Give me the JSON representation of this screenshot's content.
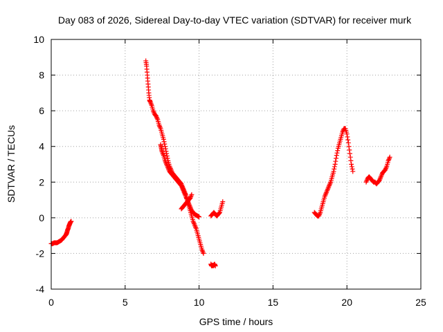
{
  "chart_data": {
    "type": "scatter",
    "title": "Day 083 of 2026, Sidereal Day-to-day VTEC variation (SDTVAR) for receiver murk",
    "xlabel": "GPS time / hours",
    "ylabel": "SDTVAR / TECUs",
    "xlim": [
      0,
      25
    ],
    "ylim": [
      -4,
      10
    ],
    "xticks": [
      0,
      5,
      10,
      15,
      20,
      25
    ],
    "yticks": [
      -4,
      -2,
      0,
      2,
      4,
      6,
      8,
      10
    ],
    "grid": true,
    "marker": "+",
    "colors": {
      "series": "#ff0000",
      "grid": "#a0a0a0",
      "axis": "#000000"
    },
    "series": [
      {
        "name": "segment-1",
        "x": [
          0.0,
          0.1,
          0.2,
          0.3,
          0.4,
          0.5,
          0.6,
          0.7,
          0.8,
          0.9,
          1.0,
          1.05,
          1.1,
          1.15,
          1.2,
          1.25,
          1.3,
          1.35
        ],
        "y": [
          -1.45,
          -1.45,
          -1.4,
          -1.4,
          -1.4,
          -1.35,
          -1.3,
          -1.25,
          -1.15,
          -1.05,
          -0.95,
          -0.85,
          -0.7,
          -0.6,
          -0.45,
          -0.35,
          -0.25,
          -0.2
        ]
      },
      {
        "name": "segment-2",
        "x": [
          6.4,
          6.45,
          6.5,
          6.55,
          6.6,
          6.65,
          6.7,
          6.8,
          6.9,
          7.0,
          7.1,
          7.2,
          7.3,
          7.4,
          7.5,
          7.6,
          7.7,
          7.8,
          7.9,
          8.0,
          8.1,
          8.2,
          8.3,
          8.4,
          8.5,
          8.6,
          8.7,
          8.8,
          8.9,
          9.0,
          9.1,
          9.2,
          9.3,
          9.4,
          9.5,
          9.6,
          9.7,
          9.8,
          9.9,
          10.0,
          10.1,
          10.2,
          10.3
        ],
        "y": [
          8.8,
          8.5,
          8.0,
          7.5,
          7.0,
          6.6,
          6.5,
          6.3,
          6.0,
          5.8,
          5.7,
          5.5,
          5.2,
          5.0,
          4.7,
          4.4,
          4.0,
          3.6,
          3.2,
          2.9,
          2.7,
          2.5,
          2.4,
          2.3,
          2.2,
          2.1,
          2.0,
          1.9,
          1.7,
          1.5,
          1.3,
          1.0,
          0.7,
          0.4,
          0.1,
          -0.2,
          -0.4,
          -0.6,
          -0.9,
          -1.2,
          -1.5,
          -1.8,
          -2.0
        ]
      },
      {
        "name": "segment-3",
        "x": [
          7.4,
          7.45,
          7.5,
          7.6,
          7.7,
          7.8,
          7.9,
          8.0,
          8.1,
          8.2,
          8.3,
          8.4,
          8.5,
          8.6,
          8.7,
          8.8,
          8.9,
          9.0,
          9.1,
          9.2,
          9.3,
          9.4,
          9.5,
          9.6,
          9.7,
          9.8,
          9.9,
          10.0
        ],
        "y": [
          4.1,
          3.9,
          3.7,
          3.5,
          3.2,
          3.0,
          2.8,
          2.6,
          2.5,
          2.4,
          2.3,
          2.2,
          2.1,
          2.0,
          1.9,
          1.8,
          1.6,
          1.4,
          1.2,
          1.0,
          0.8,
          0.6,
          0.4,
          0.3,
          0.2,
          0.15,
          0.1,
          0.05
        ]
      },
      {
        "name": "segment-4",
        "x": [
          8.8,
          8.9,
          9.0,
          9.1,
          9.2,
          9.3,
          9.4,
          9.5
        ],
        "y": [
          0.5,
          0.6,
          0.7,
          0.8,
          0.9,
          1.0,
          1.1,
          1.3
        ]
      },
      {
        "name": "segment-5",
        "x": [
          10.8,
          10.85,
          10.9,
          10.95,
          11.0,
          11.05,
          11.1
        ],
        "y": [
          -2.6,
          -2.7,
          -2.65,
          -2.7,
          -2.65,
          -2.6,
          -2.7
        ]
      },
      {
        "name": "segment-6",
        "x": [
          10.8,
          10.9,
          11.0,
          11.1,
          11.2,
          11.3,
          11.4,
          11.5,
          11.6
        ],
        "y": [
          0.1,
          0.2,
          0.3,
          0.2,
          0.1,
          0.2,
          0.3,
          0.6,
          0.9
        ]
      },
      {
        "name": "segment-7",
        "x": [
          17.8,
          17.9,
          18.0,
          18.1,
          18.2,
          18.3,
          18.4,
          18.5,
          18.6,
          18.7,
          18.8,
          18.9,
          19.0,
          19.1,
          19.2,
          19.3,
          19.4,
          19.5,
          19.6,
          19.7,
          19.8,
          19.9,
          20.0,
          20.1,
          20.2,
          20.3,
          20.4
        ],
        "y": [
          0.3,
          0.2,
          0.1,
          0.1,
          0.3,
          0.6,
          0.9,
          1.2,
          1.4,
          1.6,
          1.8,
          2.0,
          2.3,
          2.6,
          3.0,
          3.5,
          3.9,
          4.2,
          4.5,
          4.8,
          5.0,
          5.0,
          4.7,
          4.2,
          3.6,
          3.0,
          2.6
        ]
      },
      {
        "name": "segment-8",
        "x": [
          21.3,
          21.4,
          21.5,
          21.6,
          21.7,
          21.8,
          21.9,
          22.0,
          22.1,
          22.2,
          22.3,
          22.4,
          22.5,
          22.6,
          22.7,
          22.8,
          22.9
        ],
        "y": [
          2.0,
          2.2,
          2.3,
          2.2,
          2.1,
          2.0,
          2.0,
          1.9,
          2.0,
          2.1,
          2.3,
          2.5,
          2.6,
          2.7,
          2.9,
          3.2,
          3.4
        ]
      }
    ]
  }
}
